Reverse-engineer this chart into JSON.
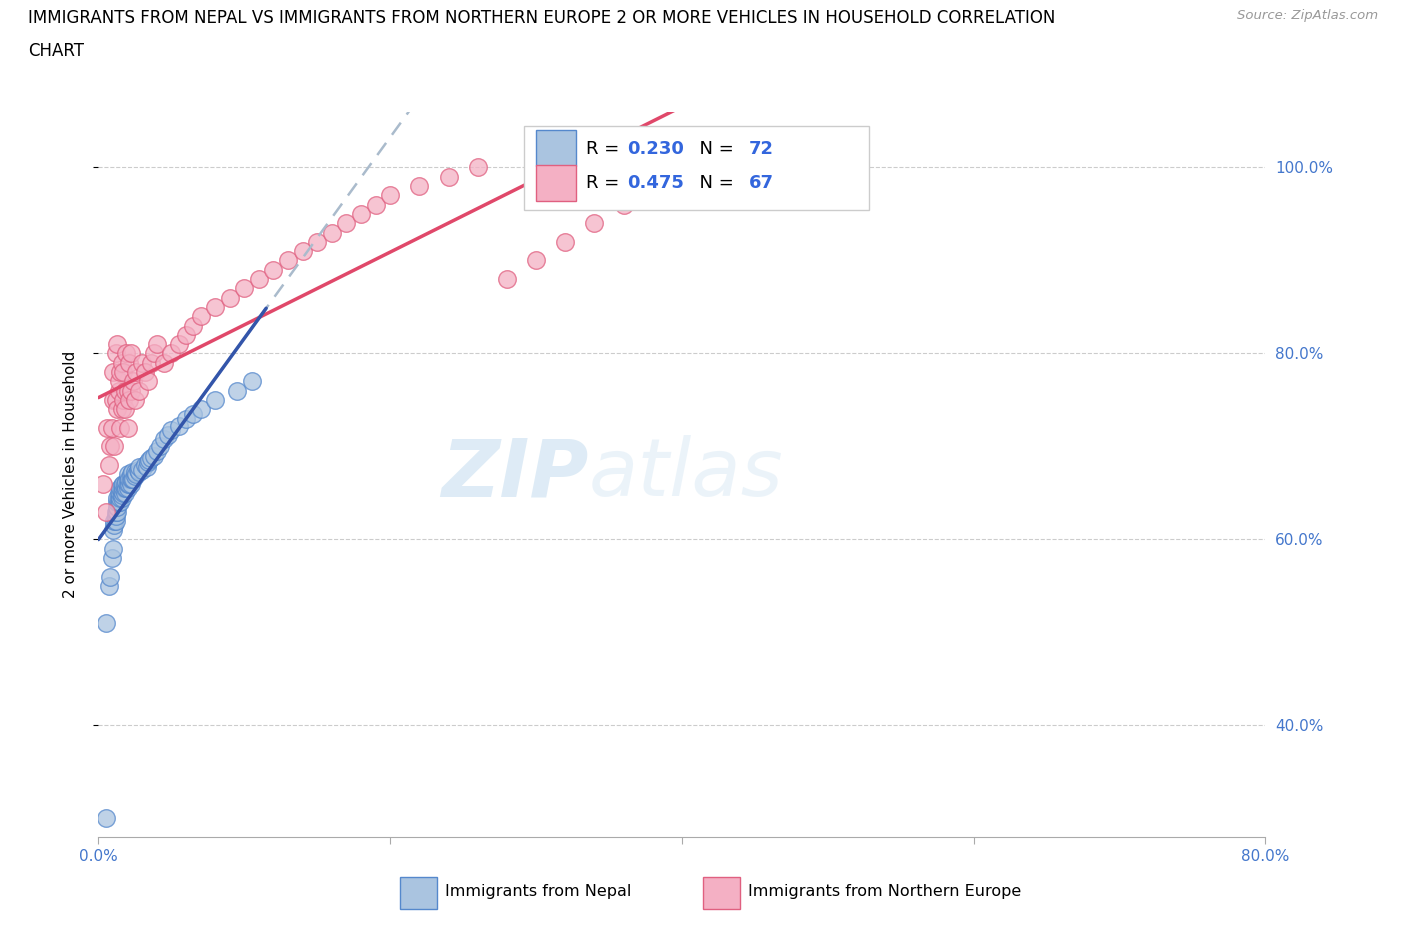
{
  "title_line1": "IMMIGRANTS FROM NEPAL VS IMMIGRANTS FROM NORTHERN EUROPE 2 OR MORE VEHICLES IN HOUSEHOLD CORRELATION",
  "title_line2": "CHART",
  "source": "Source: ZipAtlas.com",
  "ylabel": "2 or more Vehicles in Household",
  "xlim": [
    0.0,
    0.8
  ],
  "ylim": [
    0.28,
    1.06
  ],
  "yticks": [
    0.4,
    0.6,
    0.8,
    1.0
  ],
  "yticklabels": [
    "40.0%",
    "60.0%",
    "80.0%",
    "100.0%"
  ],
  "xtick_positions": [
    0.0,
    0.2,
    0.4,
    0.6,
    0.8
  ],
  "nepal_color": "#aac4e0",
  "nepal_edge_color": "#5588cc",
  "northern_europe_color": "#f4b0c4",
  "northern_europe_edge_color": "#e06080",
  "nepal_R": 0.23,
  "nepal_N": 72,
  "northern_europe_R": 0.475,
  "northern_europe_N": 67,
  "nepal_line_color": "#3355aa",
  "northern_europe_line_color": "#e0486a",
  "watermark_zip": "ZIP",
  "watermark_atlas": "atlas",
  "nepal_x": [
    0.005,
    0.007,
    0.008,
    0.009,
    0.01,
    0.01,
    0.011,
    0.011,
    0.012,
    0.012,
    0.012,
    0.013,
    0.013,
    0.013,
    0.013,
    0.014,
    0.014,
    0.014,
    0.015,
    0.015,
    0.015,
    0.015,
    0.016,
    0.016,
    0.016,
    0.016,
    0.017,
    0.017,
    0.017,
    0.018,
    0.018,
    0.018,
    0.019,
    0.019,
    0.02,
    0.02,
    0.02,
    0.02,
    0.021,
    0.021,
    0.022,
    0.022,
    0.022,
    0.023,
    0.023,
    0.024,
    0.025,
    0.025,
    0.026,
    0.027,
    0.028,
    0.028,
    0.03,
    0.032,
    0.033,
    0.034,
    0.035,
    0.036,
    0.038,
    0.04,
    0.042,
    0.045,
    0.048,
    0.05,
    0.055,
    0.06,
    0.065,
    0.07,
    0.08,
    0.095,
    0.105,
    0.005
  ],
  "nepal_y": [
    0.3,
    0.55,
    0.56,
    0.58,
    0.59,
    0.61,
    0.615,
    0.62,
    0.62,
    0.625,
    0.63,
    0.63,
    0.635,
    0.64,
    0.645,
    0.64,
    0.645,
    0.65,
    0.64,
    0.645,
    0.65,
    0.655,
    0.645,
    0.648,
    0.652,
    0.658,
    0.65,
    0.655,
    0.66,
    0.65,
    0.655,
    0.66,
    0.655,
    0.662,
    0.655,
    0.66,
    0.665,
    0.67,
    0.66,
    0.665,
    0.66,
    0.665,
    0.67,
    0.665,
    0.672,
    0.665,
    0.668,
    0.672,
    0.67,
    0.675,
    0.672,
    0.678,
    0.675,
    0.68,
    0.678,
    0.683,
    0.685,
    0.688,
    0.69,
    0.695,
    0.7,
    0.708,
    0.712,
    0.718,
    0.722,
    0.73,
    0.735,
    0.74,
    0.75,
    0.76,
    0.77,
    0.51
  ],
  "ne_x": [
    0.003,
    0.005,
    0.006,
    0.007,
    0.008,
    0.009,
    0.01,
    0.01,
    0.011,
    0.012,
    0.012,
    0.013,
    0.013,
    0.014,
    0.014,
    0.015,
    0.015,
    0.016,
    0.016,
    0.017,
    0.017,
    0.018,
    0.018,
    0.019,
    0.02,
    0.02,
    0.021,
    0.021,
    0.022,
    0.022,
    0.024,
    0.025,
    0.026,
    0.028,
    0.03,
    0.032,
    0.034,
    0.036,
    0.038,
    0.04,
    0.045,
    0.05,
    0.055,
    0.06,
    0.065,
    0.07,
    0.08,
    0.09,
    0.1,
    0.11,
    0.12,
    0.13,
    0.14,
    0.15,
    0.16,
    0.17,
    0.18,
    0.19,
    0.2,
    0.22,
    0.24,
    0.26,
    0.28,
    0.3,
    0.32,
    0.34,
    0.36
  ],
  "ne_y": [
    0.66,
    0.63,
    0.72,
    0.68,
    0.7,
    0.72,
    0.75,
    0.78,
    0.7,
    0.75,
    0.8,
    0.74,
    0.81,
    0.76,
    0.77,
    0.72,
    0.78,
    0.74,
    0.79,
    0.75,
    0.78,
    0.74,
    0.76,
    0.8,
    0.72,
    0.76,
    0.75,
    0.79,
    0.76,
    0.8,
    0.77,
    0.75,
    0.78,
    0.76,
    0.79,
    0.78,
    0.77,
    0.79,
    0.8,
    0.81,
    0.79,
    0.8,
    0.81,
    0.82,
    0.83,
    0.84,
    0.85,
    0.86,
    0.87,
    0.88,
    0.89,
    0.9,
    0.91,
    0.92,
    0.93,
    0.94,
    0.95,
    0.96,
    0.97,
    0.98,
    0.99,
    1.0,
    0.88,
    0.9,
    0.92,
    0.94,
    0.96
  ]
}
